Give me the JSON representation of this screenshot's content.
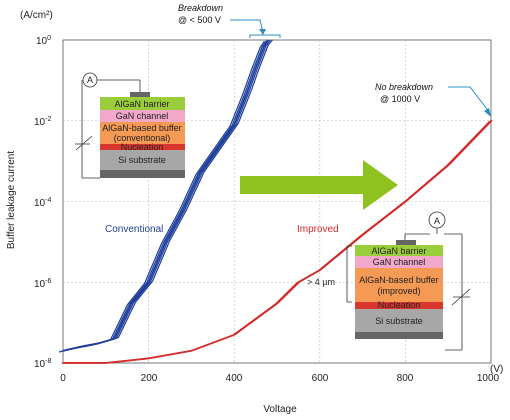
{
  "chart_data": {
    "type": "line",
    "xlabel": "Voltage",
    "x_unit": "(V)",
    "ylabel": "Buffer leakage current",
    "y_unit": "(A/cm²)",
    "yscale": "log",
    "xlim": [
      0,
      1000
    ],
    "ylim": [
      1e-08,
      1
    ],
    "x_ticks": [
      "0",
      "200",
      "400",
      "600",
      "800",
      "1000"
    ],
    "y_ticks": [
      {
        "base": "10",
        "exp": "0"
      },
      {
        "base": "10",
        "exp": "-2"
      },
      {
        "base": "10",
        "exp": "-4"
      },
      {
        "base": "10",
        "exp": "-6"
      },
      {
        "base": "10",
        "exp": "-8"
      }
    ],
    "grid": true,
    "series": [
      {
        "name": "Conventional",
        "color": "#1f3f9a",
        "x": [
          0,
          40,
          80,
          120,
          160,
          200,
          240,
          280,
          320,
          360,
          400,
          430,
          450,
          470,
          480
        ],
        "y": [
          2e-08,
          2.5e-08,
          3e-08,
          4e-08,
          3e-07,
          1e-06,
          1e-05,
          6e-05,
          0.0005,
          0.002,
          0.008,
          0.05,
          0.2,
          0.7,
          1
        ]
      },
      {
        "name": "Improved",
        "color": "#d42a2a",
        "x": [
          0,
          100,
          200,
          300,
          400,
          500,
          550,
          600,
          700,
          800,
          900,
          1000
        ],
        "y": [
          1e-08,
          1e-08,
          1.3e-08,
          2e-08,
          5e-08,
          3e-07,
          1e-06,
          2e-06,
          1.5e-05,
          0.0001,
          0.0008,
          0.01
        ]
      }
    ],
    "annotations": {
      "breakdown": {
        "line1": "Breakdown",
        "line2": "@ < 500 V"
      },
      "no_breakdown": {
        "line1": "No breakdown",
        "line2": "@ 1000 V"
      }
    }
  },
  "stack_conventional": {
    "meter": "A",
    "layers": [
      "AlGaN barrier",
      "GaN channel",
      "AlGaN-based buffer",
      "(conventional)",
      "Nucleation",
      "Si substrate"
    ]
  },
  "stack_improved": {
    "meter": "A",
    "thickness": "> 4 µm",
    "layers": [
      "AlGaN barrier",
      "GaN channel",
      "AlGaN-based buffer",
      "(improved)",
      "Nucleation",
      "Si substrate"
    ]
  },
  "colors": {
    "barrier": "#9acd3a",
    "channel": "#f2a8c8",
    "buffer": "#f59a55",
    "nucleation": "#d9362e",
    "substrate": "#a7a7a7",
    "arrow": "#8dc21f"
  }
}
